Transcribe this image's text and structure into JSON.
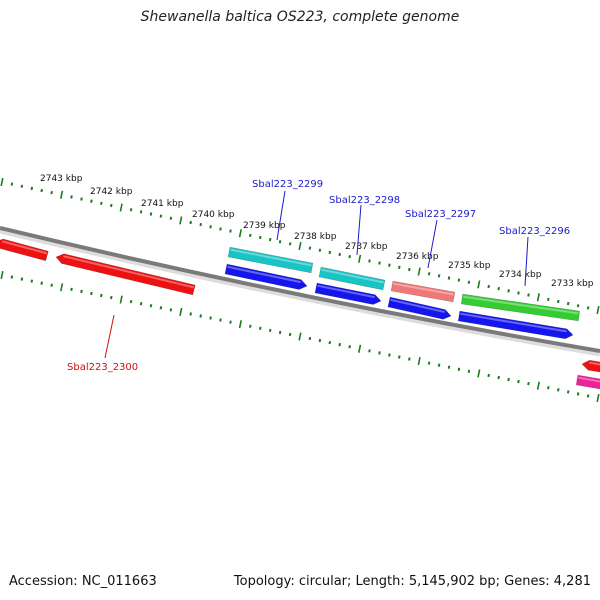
{
  "title": "Shewanella baltica OS223, complete genome",
  "footer": {
    "accession": "Accession: NC_011663",
    "summary": "Topology: circular; Length: 5,145,902 bp; Genes: 4,281"
  },
  "colors": {
    "backbone": "#7a7a7a",
    "tick": "#1f7a1f",
    "label_blue": "#1a1acc",
    "label_red": "#cc1111"
  },
  "ruler_labels": [
    "2743 kbp",
    "2742 kbp",
    "2741 kbp",
    "2740 kbp",
    "2739 kbp",
    "2738 kbp",
    "2737 kbp",
    "2736 kbp",
    "2735 kbp",
    "2734 kbp",
    "2733 kbp"
  ],
  "gene_labels": [
    {
      "text": "Sbal223_2300",
      "color": "#cc1111"
    },
    {
      "text": "Sbal223_2299",
      "color": "#1a1acc"
    },
    {
      "text": "Sbal223_2298",
      "color": "#1a1acc"
    },
    {
      "text": "Sbal223_2297",
      "color": "#1a1acc"
    },
    {
      "text": "Sbal223_2296",
      "color": "#1a1acc"
    }
  ],
  "features": [
    {
      "color": "#ee1111",
      "direction": "left"
    },
    {
      "color": "#ee1111",
      "direction": "left"
    },
    {
      "color": "#19c4c4",
      "direction": "none"
    },
    {
      "color": "#19c4c4",
      "direction": "none"
    },
    {
      "color": "#ee7777",
      "direction": "none"
    },
    {
      "color": "#33cc33",
      "direction": "none"
    },
    {
      "color": "#1515ee",
      "direction": "right"
    },
    {
      "color": "#1515ee",
      "direction": "right"
    },
    {
      "color": "#1515ee",
      "direction": "right"
    },
    {
      "color": "#1515ee",
      "direction": "right"
    },
    {
      "color": "#ee1111",
      "direction": "left"
    },
    {
      "color": "#ee2299",
      "direction": "none"
    }
  ]
}
